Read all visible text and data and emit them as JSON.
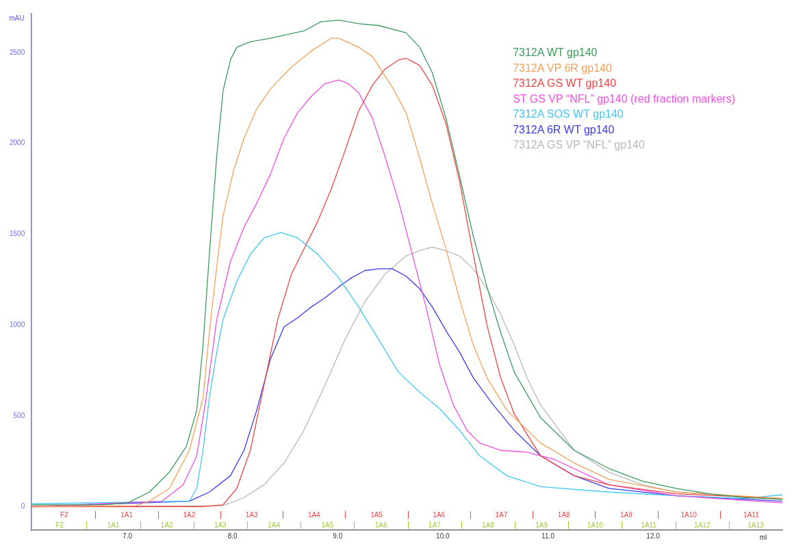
{
  "chart_data": {
    "type": "line",
    "xlabel": "ml",
    "ylabel": "mAU",
    "legend": "top right",
    "grid": false,
    "marker": "none",
    "line_style": "solid",
    "xlim": [
      6.09,
      13.23
    ],
    "xticks": [
      {
        "value": 7,
        "label": "7.0"
      },
      {
        "value": 8,
        "label": "8.0"
      },
      {
        "value": 9,
        "label": "9.0"
      },
      {
        "value": 10,
        "label": "10.0"
      },
      {
        "value": 11,
        "label": "11.0"
      },
      {
        "value": 12,
        "label": "12.0"
      }
    ],
    "ylim": [
      -130,
      2715
    ],
    "annotations": [
      "F2",
      "1A1",
      "1A2",
      "1A3",
      "1A4",
      "1A5",
      "1A6",
      "1A7",
      "1A8",
      "1A9",
      "1A10",
      "1A11",
      "F2",
      "1A1",
      "1A2",
      "1A3",
      "1A4",
      "1A5",
      "1A6",
      "1A7",
      "1A8",
      "1A9",
      "1A10",
      "1A11",
      "1A12",
      "1A13"
    ],
    "yticks": [
      0,
      500,
      1000,
      1500,
      2000,
      2500
    ],
    "series": [
      {
        "name": "7312A WT gp140",
        "color": "#3d9a5e",
        "x": [
          6.09,
          6.76,
          7.0,
          7.21,
          7.4,
          7.56,
          7.66,
          7.72,
          7.78,
          7.85,
          7.91,
          7.98,
          8.04,
          8.17,
          8.36,
          8.68,
          8.84,
          9.01,
          9.2,
          9.39,
          9.65,
          9.78,
          9.9,
          10.03,
          10.16,
          10.29,
          10.42,
          10.55,
          10.68,
          10.93,
          11.25,
          11.58,
          11.9,
          12.22,
          12.54,
          12.86,
          13.23
        ],
        "values": [
          10,
          10,
          20,
          80,
          190,
          330,
          530,
          890,
          1390,
          1930,
          2290,
          2460,
          2530,
          2560,
          2580,
          2620,
          2670,
          2680,
          2660,
          2650,
          2610,
          2530,
          2390,
          2140,
          1820,
          1490,
          1210,
          960,
          740,
          490,
          310,
          210,
          140,
          100,
          70,
          50,
          40
        ]
      },
      {
        "name": "7312A VP 6R gp140",
        "color": "#f5a05a",
        "x": [
          6.09,
          7.08,
          7.21,
          7.4,
          7.59,
          7.72,
          7.78,
          7.85,
          7.91,
          8.01,
          8.11,
          8.23,
          8.36,
          8.56,
          8.75,
          8.94,
          9.01,
          9.2,
          9.33,
          9.52,
          9.65,
          9.78,
          9.9,
          10.03,
          10.16,
          10.29,
          10.42,
          10.61,
          10.93,
          11.25,
          11.58,
          12.22,
          13.23
        ],
        "values": [
          0,
          5,
          30,
          100,
          310,
          600,
          960,
          1320,
          1600,
          1850,
          2030,
          2190,
          2300,
          2420,
          2510,
          2580,
          2580,
          2530,
          2480,
          2310,
          2170,
          1920,
          1670,
          1420,
          1140,
          890,
          710,
          530,
          350,
          240,
          150,
          80,
          45
        ]
      },
      {
        "name": "7312A GS WT gp140",
        "color": "#f04444",
        "x": [
          6.09,
          7.72,
          7.91,
          8.04,
          8.17,
          8.3,
          8.43,
          8.56,
          8.68,
          8.81,
          8.94,
          9.07,
          9.2,
          9.33,
          9.45,
          9.58,
          9.65,
          9.78,
          9.9,
          10.03,
          10.16,
          10.29,
          10.42,
          10.55,
          10.68,
          10.93,
          11.25,
          11.58,
          12.22,
          13.23
        ],
        "values": [
          0,
          0,
          10,
          100,
          310,
          670,
          1030,
          1280,
          1420,
          1570,
          1750,
          1960,
          2180,
          2320,
          2410,
          2460,
          2470,
          2430,
          2320,
          2110,
          1790,
          1390,
          1000,
          710,
          510,
          280,
          170,
          120,
          70,
          45
        ]
      },
      {
        "name": "ST GS VP “NFL” gp140 (red fraction markers)",
        "color": "#f050e0",
        "x": [
          6.09,
          7.33,
          7.53,
          7.66,
          7.75,
          7.85,
          7.98,
          8.11,
          8.23,
          8.36,
          8.49,
          8.62,
          8.75,
          8.88,
          9.01,
          9.1,
          9.2,
          9.33,
          9.45,
          9.58,
          9.71,
          9.84,
          9.97,
          10.1,
          10.23,
          10.35,
          10.55,
          10.8,
          11.06,
          11.32,
          11.58,
          12.22,
          13.23
        ],
        "values": [
          0,
          30,
          120,
          280,
          600,
          1030,
          1350,
          1540,
          1670,
          1830,
          2030,
          2170,
          2260,
          2330,
          2350,
          2330,
          2280,
          2140,
          1930,
          1680,
          1390,
          1100,
          780,
          560,
          420,
          350,
          310,
          300,
          260,
          190,
          120,
          60,
          20
        ]
      },
      {
        "name": "7312A SOS WT gp140",
        "color": "#40c8f0",
        "x": [
          6.09,
          7.59,
          7.66,
          7.72,
          7.78,
          7.85,
          7.91,
          8.04,
          8.17,
          8.3,
          8.46,
          8.62,
          8.81,
          9.01,
          9.2,
          9.39,
          9.58,
          9.78,
          9.97,
          10.16,
          10.35,
          10.61,
          10.93,
          11.58,
          12.22,
          12.86,
          13.23
        ],
        "values": [
          15,
          30,
          100,
          310,
          600,
          850,
          1030,
          1240,
          1390,
          1480,
          1510,
          1480,
          1390,
          1260,
          1100,
          920,
          740,
          630,
          540,
          420,
          280,
          170,
          110,
          80,
          60,
          45,
          65
        ]
      },
      {
        "name": "7312A 6R WT gp140",
        "color": "#3a3af0",
        "x": [
          6.09,
          7.59,
          7.78,
          7.98,
          8.11,
          8.23,
          8.36,
          8.49,
          8.62,
          8.75,
          8.88,
          9.01,
          9.13,
          9.26,
          9.39,
          9.52,
          9.65,
          9.78,
          9.9,
          10.03,
          10.16,
          10.29,
          10.48,
          10.68,
          10.93,
          11.25,
          11.58,
          12.22,
          13.23
        ],
        "values": [
          0,
          30,
          80,
          170,
          310,
          530,
          810,
          990,
          1040,
          1100,
          1150,
          1210,
          1260,
          1300,
          1310,
          1310,
          1270,
          1200,
          1100,
          970,
          850,
          710,
          560,
          420,
          280,
          170,
          100,
          60,
          30
        ]
      },
      {
        "name": "7312A GS VP “NFL” gp140",
        "color": "#b8b8b8",
        "x": [
          6.09,
          7.91,
          8.11,
          8.3,
          8.49,
          8.68,
          8.88,
          9.07,
          9.26,
          9.45,
          9.65,
          9.78,
          9.9,
          10.03,
          10.16,
          10.29,
          10.42,
          10.55,
          10.68,
          10.8,
          10.93,
          11.25,
          11.58,
          11.9,
          12.22,
          13.23
        ],
        "values": [
          0,
          5,
          50,
          120,
          240,
          420,
          670,
          920,
          1130,
          1280,
          1380,
          1410,
          1430,
          1410,
          1380,
          1310,
          1200,
          1060,
          890,
          710,
          560,
          310,
          190,
          120,
          80,
          40
        ]
      }
    ]
  }
}
